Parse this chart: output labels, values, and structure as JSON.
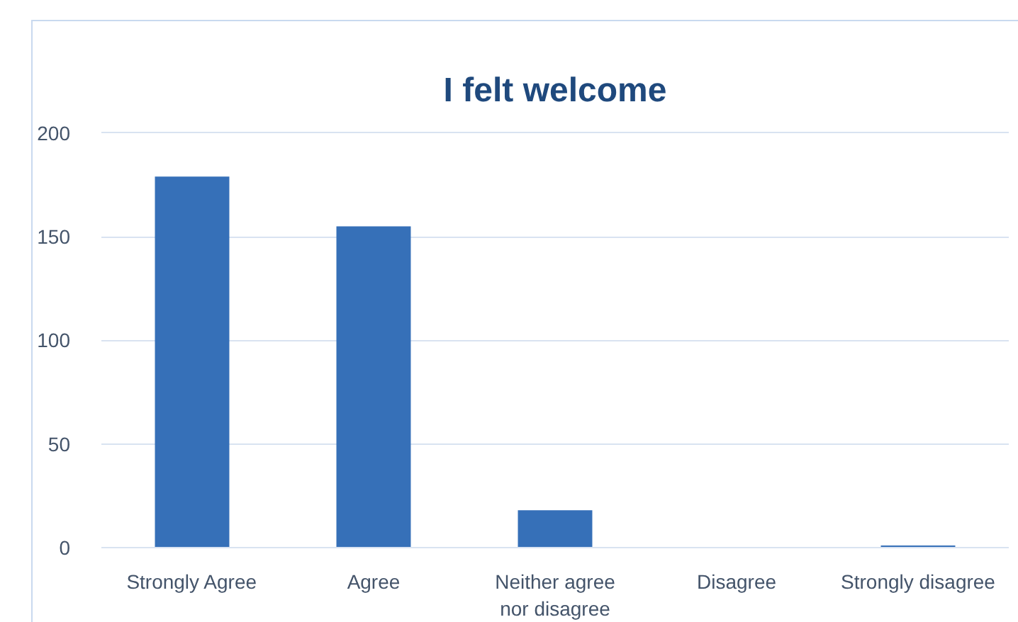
{
  "chart_data": {
    "type": "bar",
    "title": "I felt welcome",
    "categories": [
      "Strongly Agree",
      "Agree",
      "Neither agree nor disagree",
      "Disagree",
      "Strongly disagree"
    ],
    "values": [
      179,
      155,
      18,
      0,
      1
    ],
    "color": "#3670b8",
    "ylim": [
      0,
      200
    ],
    "yticks": [
      0,
      50,
      100,
      150,
      200
    ],
    "grid": "y"
  }
}
